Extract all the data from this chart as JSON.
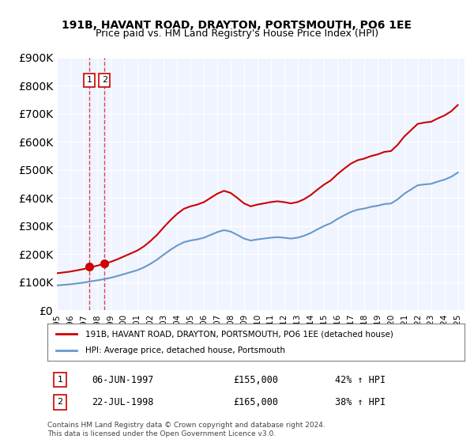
{
  "title": "191B, HAVANT ROAD, DRAYTON, PORTSMOUTH, PO6 1EE",
  "subtitle": "Price paid vs. HM Land Registry's House Price Index (HPI)",
  "legend_line1": "191B, HAVANT ROAD, DRAYTON, PORTSMOUTH, PO6 1EE (detached house)",
  "legend_line2": "HPI: Average price, detached house, Portsmouth",
  "transaction1_label": "1",
  "transaction1_date": "06-JUN-1997",
  "transaction1_price": "£155,000",
  "transaction1_hpi": "42% ↑ HPI",
  "transaction2_label": "2",
  "transaction2_date": "22-JUL-1998",
  "transaction2_price": "£165,000",
  "transaction2_hpi": "38% ↑ HPI",
  "footer": "Contains HM Land Registry data © Crown copyright and database right 2024.\nThis data is licensed under the Open Government Licence v3.0.",
  "red_color": "#cc0000",
  "blue_color": "#6699cc",
  "bg_color": "#f0f4ff",
  "ylim": [
    0,
    900000
  ],
  "xlim_start": 1995.0,
  "xlim_end": 2025.5,
  "transaction1_x": 1997.44,
  "transaction2_x": 1998.56,
  "transaction1_y": 155000,
  "transaction2_y": 165000
}
